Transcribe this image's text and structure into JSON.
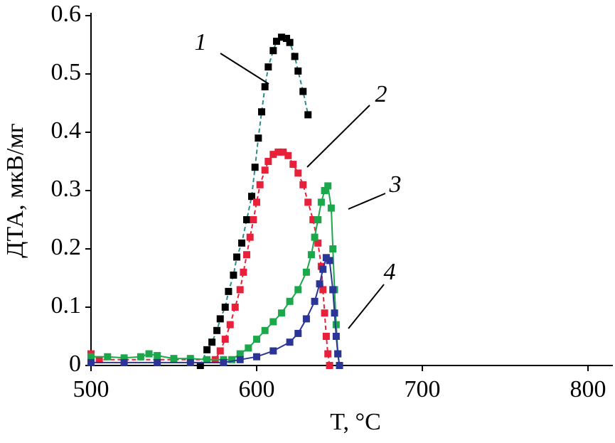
{
  "chart_data": {
    "type": "scatter",
    "x_label": "T, °C",
    "y_label": "ДТА, мкВ/мг",
    "xlim": [
      500,
      815
    ],
    "xticks": [
      500,
      600,
      700,
      800
    ],
    "ylim": [
      0,
      0.6
    ],
    "yticks": [
      0,
      0.1,
      0.2,
      0.3,
      0.4,
      0.5,
      0.6
    ],
    "grid": false,
    "annotations": [
      "1",
      "2",
      "3",
      "4"
    ],
    "series": [
      {
        "name": "1",
        "color": "#000000",
        "line_color": "#2a8c8c",
        "line_style": "dashed",
        "x": [
          566,
          570,
          573,
          576,
          578,
          581,
          583,
          586,
          588,
          591,
          594,
          597,
          599,
          601,
          603,
          605,
          607,
          610,
          612,
          615,
          618,
          620,
          623,
          625,
          628,
          631
        ],
        "values": [
          0.0,
          0.027,
          0.04,
          0.06,
          0.08,
          0.1,
          0.127,
          0.155,
          0.186,
          0.21,
          0.25,
          0.29,
          0.34,
          0.39,
          0.435,
          0.478,
          0.512,
          0.54,
          0.556,
          0.563,
          0.561,
          0.554,
          0.53,
          0.505,
          0.47,
          0.43
        ]
      },
      {
        "name": "2",
        "color": "#e8203a",
        "line_color": "#e8203a",
        "line_style": "dashed",
        "x": [
          500,
          505,
          575,
          578,
          581,
          584,
          587,
          590,
          592,
          594,
          596,
          598,
          600,
          602,
          605,
          607,
          610,
          613,
          616,
          619,
          622,
          625,
          628,
          631,
          634,
          637,
          639,
          640,
          641,
          642,
          643,
          644
        ],
        "values": [
          0.02,
          0.01,
          0.01,
          0.025,
          0.045,
          0.07,
          0.1,
          0.13,
          0.16,
          0.19,
          0.22,
          0.25,
          0.28,
          0.31,
          0.335,
          0.35,
          0.362,
          0.366,
          0.366,
          0.36,
          0.345,
          0.33,
          0.31,
          0.28,
          0.25,
          0.21,
          0.17,
          0.13,
          0.09,
          0.05,
          0.02,
          0
        ]
      },
      {
        "name": "3",
        "color": "#1aa84a",
        "line_color": "#1aa84a",
        "line_style": "solid",
        "x": [
          500,
          510,
          520,
          530,
          535,
          540,
          550,
          560,
          570,
          580,
          585,
          590,
          595,
          600,
          605,
          610,
          615,
          620,
          625,
          630,
          633,
          635,
          637,
          639,
          641,
          643,
          645,
          646,
          647,
          648,
          649,
          650
        ],
        "values": [
          0.015,
          0.015,
          0.013,
          0.015,
          0.02,
          0.017,
          0.012,
          0.012,
          0.01,
          0.01,
          0.01,
          0.02,
          0.03,
          0.045,
          0.06,
          0.075,
          0.09,
          0.11,
          0.13,
          0.16,
          0.19,
          0.22,
          0.25,
          0.28,
          0.3,
          0.308,
          0.27,
          0.2,
          0.13,
          0.07,
          0.02,
          0
        ]
      },
      {
        "name": "4",
        "color": "#2b3596",
        "line_color": "#2b3596",
        "line_style": "solid",
        "x": [
          500,
          520,
          540,
          560,
          580,
          590,
          600,
          610,
          620,
          625,
          630,
          635,
          638,
          640,
          642,
          644,
          646,
          647,
          648,
          649,
          650
        ],
        "values": [
          0.005,
          0.005,
          0.005,
          0.005,
          0.005,
          0.01,
          0.015,
          0.025,
          0.04,
          0.055,
          0.08,
          0.11,
          0.14,
          0.165,
          0.185,
          0.18,
          0.13,
          0.09,
          0.05,
          0.02,
          0
        ]
      }
    ]
  }
}
